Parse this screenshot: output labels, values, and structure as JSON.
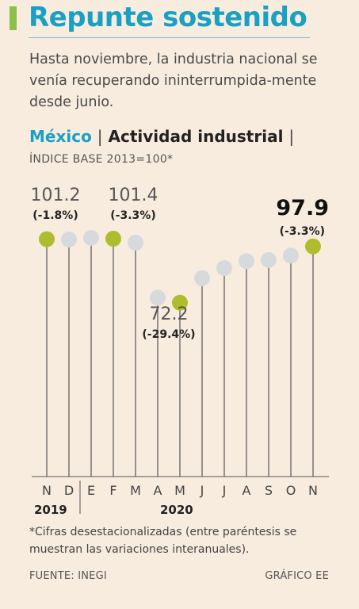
{
  "header": {
    "title": "Repunte sostenido",
    "subtitle": "Hasta noviembre, la industria nacional se venía recuperando ininterrumpida-mente desde junio.",
    "section_country": "México",
    "section_separator": "|",
    "section_name": "Actividad industrial",
    "index_label": "ÍNDICE BASE 2013=100*"
  },
  "footer": {
    "footnote": "*Cifras desestacionalizadas (entre paréntesis se muestran las variaciones interanuales).",
    "source": "FUENTE: INEGI",
    "credit": "GRÁFICO EE"
  },
  "chart_data": {
    "type": "scatter",
    "categories": [
      "N",
      "D",
      "E",
      "F",
      "M",
      "A",
      "M",
      "J",
      "J",
      "A",
      "S",
      "O",
      "N"
    ],
    "years": [
      {
        "label": "2019",
        "from": 0,
        "to": 1
      },
      {
        "label": "2020",
        "from": 2,
        "to": 12
      }
    ],
    "values": [
      101.2,
      101.0,
      101.8,
      101.4,
      99.6,
      74.5,
      72.2,
      83.4,
      88.0,
      91.2,
      91.7,
      93.7,
      97.9
    ],
    "highlighted": [
      0,
      3,
      6,
      12
    ],
    "annotations": [
      {
        "index": 0,
        "value": "101.2",
        "change": "(-1.8%)"
      },
      {
        "index": 3,
        "value": "101.4",
        "change": "(-3.3%)"
      },
      {
        "index": 6,
        "value": "72.2",
        "change": "(-29.4%)"
      },
      {
        "index": 12,
        "value": "97.9",
        "change": "(-3.3%)"
      }
    ],
    "ylim": [
      60,
      110
    ],
    "colors": {
      "highlight": "#aebd2f",
      "normal": "#d6dadd",
      "stem": "#555555"
    }
  }
}
